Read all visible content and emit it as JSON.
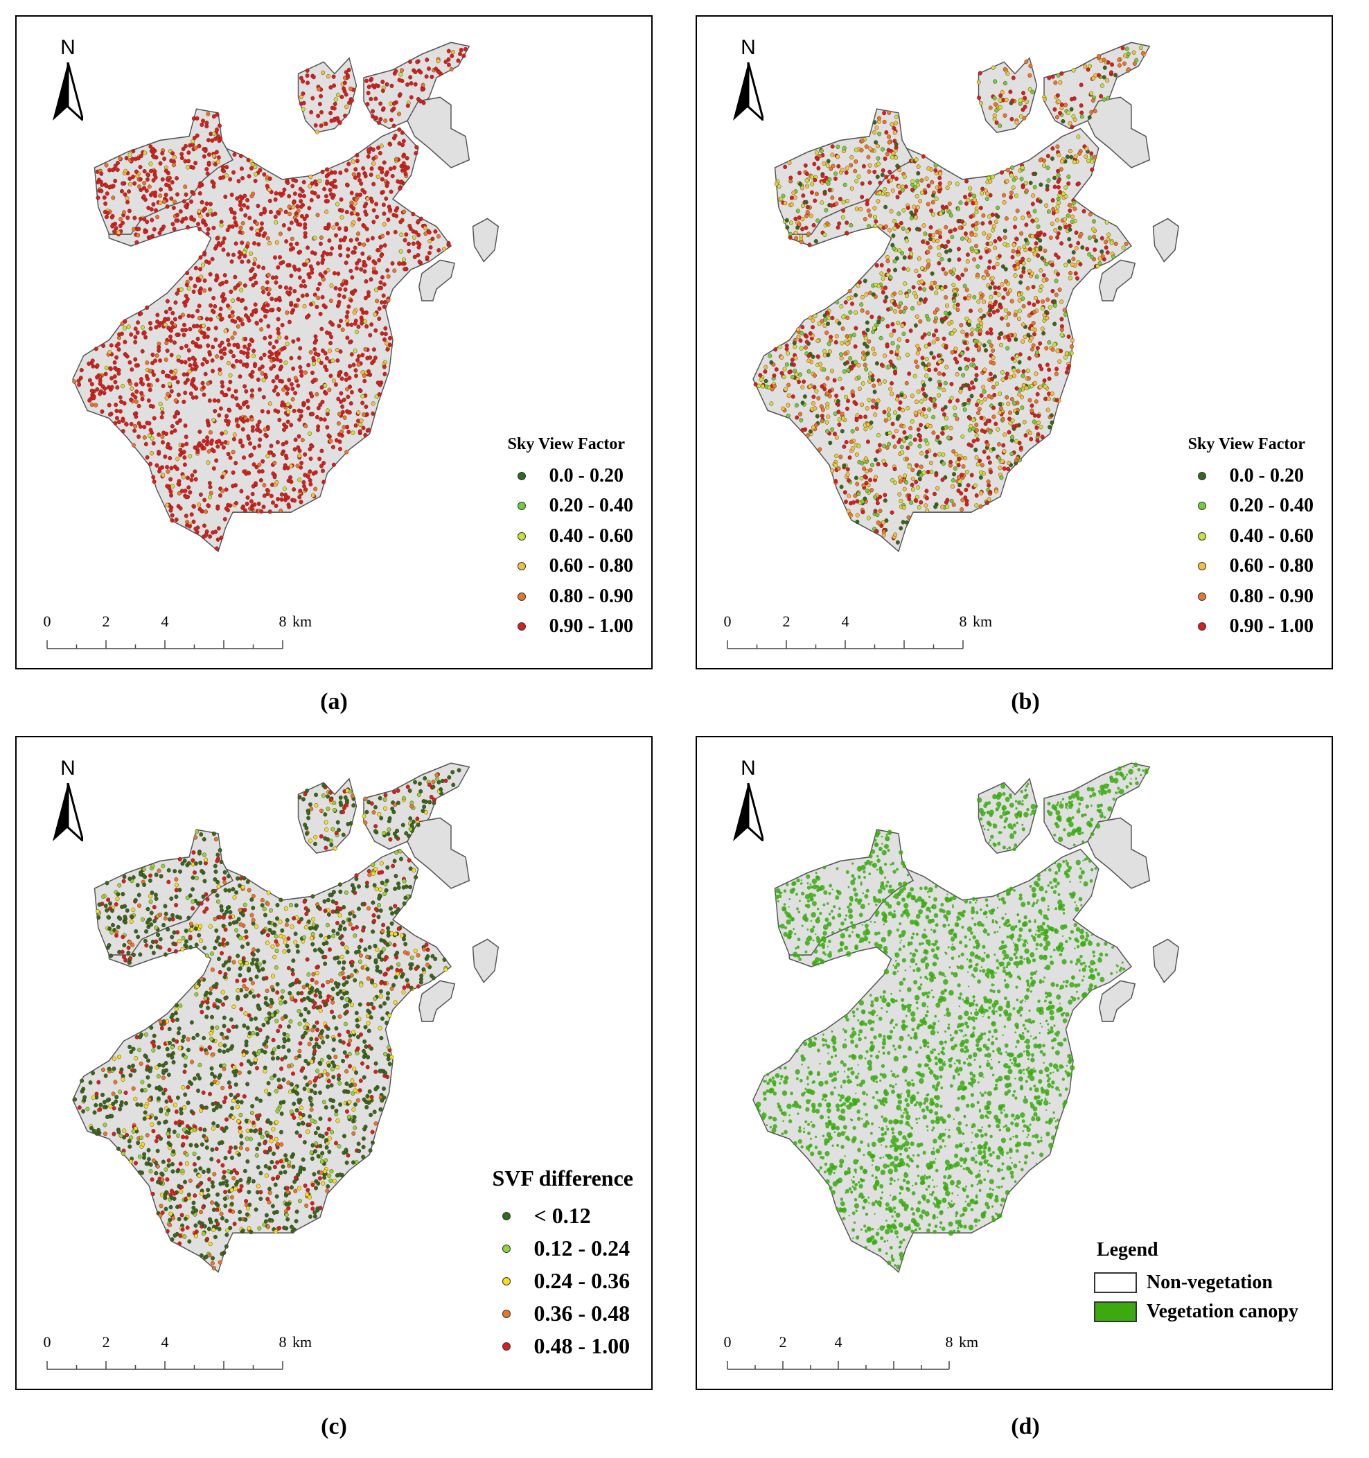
{
  "panels": [
    {
      "id": "a",
      "caption": "(a)",
      "legend_title": "Sky View Factor",
      "scheme": "svf",
      "legend": [
        {
          "label": "0.0 - 0.20",
          "color": "#2e6b1f"
        },
        {
          "label": "0.20 - 0.40",
          "color": "#6fcf3a"
        },
        {
          "label": "0.40 - 0.60",
          "color": "#c8e03a"
        },
        {
          "label": "0.60 - 0.80",
          "color": "#f0c040"
        },
        {
          "label": "0.80 - 0.90",
          "color": "#e8772a"
        },
        {
          "label": "0.90 - 1.00",
          "color": "#d42020"
        }
      ],
      "dominant": "red"
    },
    {
      "id": "b",
      "caption": "(b)",
      "legend_title": "Sky View Factor",
      "scheme": "svf",
      "legend": [
        {
          "label": "0.0 - 0.20",
          "color": "#2e6b1f"
        },
        {
          "label": "0.20 - 0.40",
          "color": "#6fcf3a"
        },
        {
          "label": "0.40 - 0.60",
          "color": "#c8e03a"
        },
        {
          "label": "0.60 - 0.80",
          "color": "#f0c040"
        },
        {
          "label": "0.80 - 0.90",
          "color": "#e8772a"
        },
        {
          "label": "0.90 - 1.00",
          "color": "#d42020"
        }
      ],
      "dominant": "mixed"
    },
    {
      "id": "c",
      "caption": "(c)",
      "legend_title": "SVF difference",
      "scheme": "diff",
      "legend": [
        {
          "label": "< 0.12",
          "color": "#2e6b1f"
        },
        {
          "label": "0.12 - 0.24",
          "color": "#8fd43a"
        },
        {
          "label": "0.24 - 0.36",
          "color": "#f0e020"
        },
        {
          "label": "0.36 - 0.48",
          "color": "#e8772a"
        },
        {
          "label": "0.48 - 1.00",
          "color": "#d42020"
        }
      ],
      "dominant": "green"
    },
    {
      "id": "d",
      "caption": "(d)",
      "legend_title": "Legend",
      "scheme": "canopy",
      "legend": [
        {
          "label": "Non-vegetation",
          "color": "#ffffff"
        },
        {
          "label": "Vegetation canopy",
          "color": "#3aaa10"
        }
      ],
      "dominant": "canopy"
    }
  ],
  "north_label": "N",
  "scale_bar": {
    "ticks": [
      "0",
      "2",
      "4",
      "8"
    ],
    "unit": "km"
  },
  "colors": {
    "land": "#e0e0e0",
    "outline": "#555555"
  }
}
